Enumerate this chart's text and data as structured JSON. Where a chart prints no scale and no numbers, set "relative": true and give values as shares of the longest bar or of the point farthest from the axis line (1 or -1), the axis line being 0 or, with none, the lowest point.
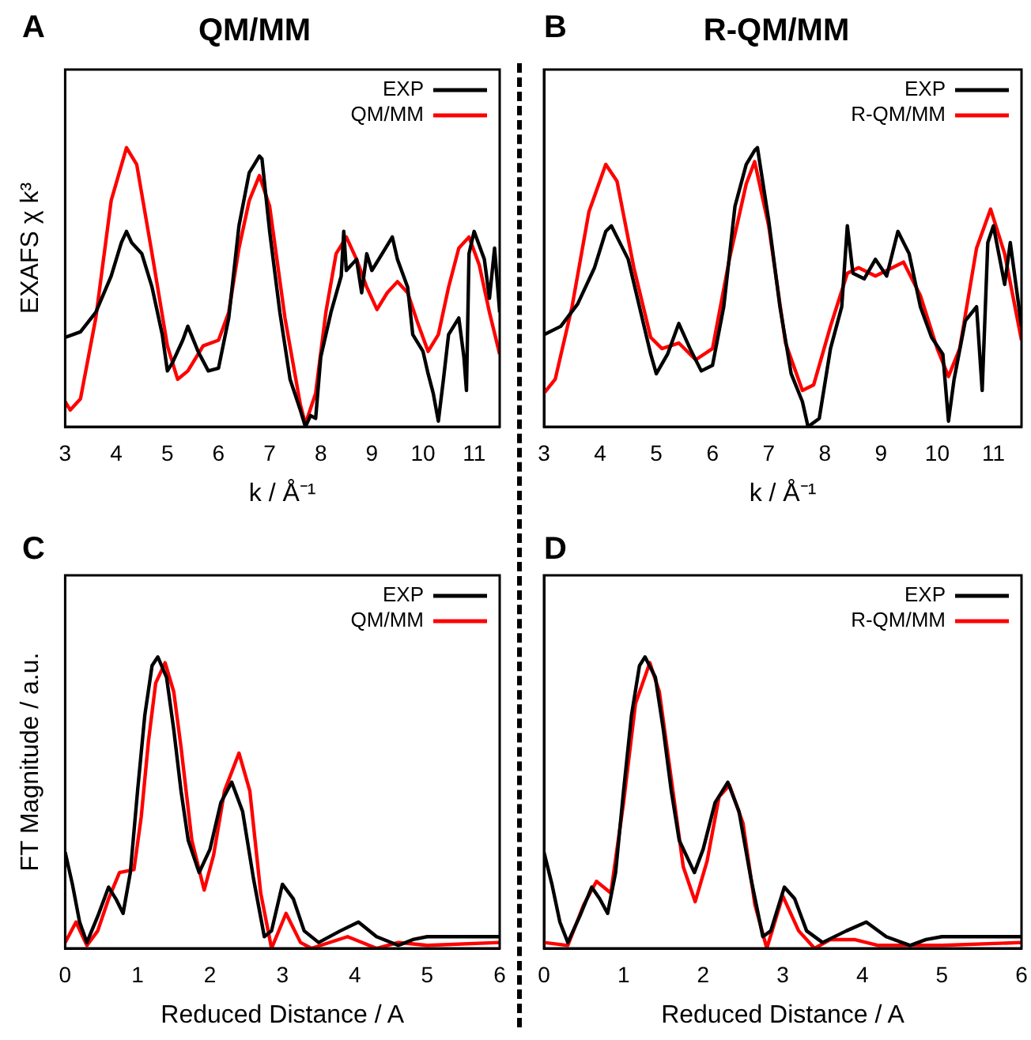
{
  "chart_data": [
    {
      "type": "line",
      "title": "QM/MM",
      "annotations": [
        "A"
      ],
      "xlabel": "k / Å⁻¹",
      "ylabel": "EXAFS χ k³",
      "relative": true,
      "legend": "top right",
      "xlim": [
        3,
        11.5
      ],
      "xticks": [
        3,
        4,
        5,
        6,
        7,
        8,
        9,
        10,
        11
      ],
      "series": [
        {
          "name": "EXP",
          "color": "#000000",
          "x": [
            3,
            3.3,
            3.6,
            3.9,
            4.1,
            4.2,
            4.3,
            4.5,
            4.7,
            4.9,
            5,
            5.1,
            5.3,
            5.4,
            5.6,
            5.8,
            6,
            6.2,
            6.4,
            6.6,
            6.7,
            6.8,
            6.85,
            7,
            7.2,
            7.4,
            7.6,
            7.7,
            7.8,
            7.9,
            8,
            8.2,
            8.4,
            8.45,
            8.5,
            8.7,
            8.8,
            8.9,
            9,
            9.2,
            9.4,
            9.5,
            9.7,
            9.8,
            10,
            10.1,
            10.2,
            10.3,
            10.4,
            10.5,
            10.7,
            10.8,
            10.85,
            10.9,
            11,
            11.2,
            11.3,
            11.4,
            11.5
          ],
          "values": [
            0.32,
            0.34,
            0.41,
            0.54,
            0.66,
            0.7,
            0.66,
            0.62,
            0.5,
            0.33,
            0.2,
            0.23,
            0.31,
            0.36,
            0.27,
            0.2,
            0.21,
            0.39,
            0.72,
            0.91,
            0.94,
            0.97,
            0.96,
            0.7,
            0.41,
            0.17,
            0.06,
            0,
            0.04,
            0.03,
            0.25,
            0.41,
            0.54,
            0.7,
            0.56,
            0.6,
            0.48,
            0.62,
            0.56,
            0.62,
            0.68,
            0.6,
            0.5,
            0.33,
            0.27,
            0.19,
            0.12,
            0.02,
            0.17,
            0.33,
            0.39,
            0.25,
            0.13,
            0.62,
            0.7,
            0.6,
            0.46,
            0.64,
            0.41
          ]
        },
        {
          "name": "QM/MM",
          "color": "#ff0000",
          "x": [
            3,
            3.1,
            3.3,
            3.6,
            3.9,
            4.2,
            4.4,
            4.7,
            5,
            5.2,
            5.4,
            5.7,
            6,
            6.2,
            6.4,
            6.6,
            6.8,
            7,
            7.3,
            7.6,
            7.7,
            7.9,
            8.1,
            8.3,
            8.5,
            8.7,
            8.9,
            9.1,
            9.3,
            9.5,
            9.7,
            9.9,
            10.1,
            10.3,
            10.5,
            10.7,
            10.9,
            11.1,
            11.3,
            11.5
          ],
          "values": [
            0.09,
            0.06,
            0.1,
            0.39,
            0.81,
            1,
            0.94,
            0.62,
            0.29,
            0.17,
            0.2,
            0.29,
            0.31,
            0.41,
            0.64,
            0.81,
            0.9,
            0.79,
            0.39,
            0.08,
            0.01,
            0.12,
            0.41,
            0.62,
            0.68,
            0.6,
            0.5,
            0.42,
            0.48,
            0.52,
            0.48,
            0.37,
            0.27,
            0.33,
            0.5,
            0.64,
            0.68,
            0.58,
            0.41,
            0.26
          ]
        }
      ]
    },
    {
      "type": "line",
      "title": "R-QM/MM",
      "annotations": [
        "B"
      ],
      "xlabel": "k / Å⁻¹",
      "relative": true,
      "legend": "top right",
      "xlim": [
        3,
        11.5
      ],
      "xticks": [
        3,
        4,
        5,
        6,
        7,
        8,
        9,
        10,
        11
      ],
      "series": [
        {
          "name": "EXP",
          "color": "#000000",
          "x": [
            3,
            3.3,
            3.6,
            3.9,
            4.1,
            4.2,
            4.3,
            4.5,
            4.7,
            4.9,
            5,
            5.2,
            5.4,
            5.6,
            5.8,
            6,
            6.2,
            6.4,
            6.6,
            6.75,
            6.8,
            7,
            7.2,
            7.4,
            7.6,
            7.7,
            7.9,
            8.1,
            8.3,
            8.4,
            8.5,
            8.7,
            8.9,
            9.1,
            9.3,
            9.5,
            9.7,
            9.9,
            10.1,
            10.2,
            10.3,
            10.5,
            10.7,
            10.8,
            10.9,
            11,
            11.2,
            11.3,
            11.5
          ],
          "values": [
            0.33,
            0.36,
            0.44,
            0.57,
            0.7,
            0.72,
            0.68,
            0.6,
            0.43,
            0.26,
            0.19,
            0.26,
            0.37,
            0.28,
            0.2,
            0.22,
            0.43,
            0.79,
            0.94,
            0.99,
            1,
            0.74,
            0.43,
            0.19,
            0.09,
            0,
            0.03,
            0.28,
            0.43,
            0.72,
            0.55,
            0.53,
            0.6,
            0.54,
            0.7,
            0.62,
            0.43,
            0.32,
            0.26,
            0.02,
            0.17,
            0.38,
            0.43,
            0.13,
            0.66,
            0.72,
            0.51,
            0.66,
            0.36
          ]
        },
        {
          "name": "R-QM/MM",
          "color": "#ff0000",
          "x": [
            3,
            3.2,
            3.5,
            3.8,
            4.1,
            4.3,
            4.6,
            4.9,
            5.1,
            5.4,
            5.7,
            6,
            6.3,
            6.6,
            6.75,
            7,
            7.3,
            7.6,
            7.8,
            8.1,
            8.4,
            8.6,
            8.9,
            9.2,
            9.4,
            9.7,
            10,
            10.2,
            10.4,
            10.7,
            10.95,
            11.2,
            11.5
          ],
          "values": [
            0.12,
            0.17,
            0.43,
            0.77,
            0.94,
            0.88,
            0.57,
            0.32,
            0.28,
            0.3,
            0.24,
            0.28,
            0.6,
            0.87,
            0.95,
            0.72,
            0.3,
            0.13,
            0.15,
            0.36,
            0.55,
            0.57,
            0.54,
            0.57,
            0.59,
            0.47,
            0.28,
            0.18,
            0.28,
            0.64,
            0.78,
            0.62,
            0.31
          ]
        }
      ]
    },
    {
      "type": "line",
      "annotations": [
        "C"
      ],
      "xlabel": "Reduced Distance / A",
      "ylabel": "FT Magnitude / a.u.",
      "relative": true,
      "legend": "top right",
      "xlim": [
        0,
        6
      ],
      "xticks": [
        0,
        1,
        2,
        3,
        4,
        5,
        6
      ],
      "series": [
        {
          "name": "EXP",
          "color": "#000000",
          "x": [
            0,
            0.1,
            0.2,
            0.3,
            0.45,
            0.6,
            0.7,
            0.8,
            0.9,
            1,
            1.1,
            1.2,
            1.28,
            1.4,
            1.5,
            1.6,
            1.7,
            1.85,
            2,
            2.15,
            2.3,
            2.45,
            2.6,
            2.75,
            2.85,
            3,
            3.15,
            3.3,
            3.5,
            3.8,
            4.05,
            4.3,
            4.6,
            4.8,
            5,
            6
          ],
          "values": [
            0.33,
            0.22,
            0.09,
            0.02,
            0.11,
            0.21,
            0.17,
            0.12,
            0.26,
            0.54,
            0.8,
            0.97,
            1,
            0.93,
            0.75,
            0.54,
            0.37,
            0.26,
            0.34,
            0.5,
            0.57,
            0.47,
            0.24,
            0.04,
            0.06,
            0.22,
            0.17,
            0.06,
            0.02,
            0.06,
            0.09,
            0.04,
            0.01,
            0.03,
            0.04,
            0.04
          ]
        },
        {
          "name": "QM/MM",
          "color": "#ff0000",
          "x": [
            0,
            0.15,
            0.3,
            0.45,
            0.6,
            0.75,
            0.95,
            1.05,
            1.15,
            1.25,
            1.38,
            1.5,
            1.6,
            1.75,
            1.92,
            2.05,
            2.2,
            2.4,
            2.55,
            2.7,
            2.85,
            3.05,
            3.25,
            3.4,
            3.9,
            4.3,
            4.6,
            5,
            6
          ],
          "values": [
            0.02,
            0.09,
            0.01,
            0.06,
            0.17,
            0.26,
            0.27,
            0.45,
            0.71,
            0.91,
            0.98,
            0.88,
            0.69,
            0.37,
            0.2,
            0.32,
            0.54,
            0.67,
            0.54,
            0.19,
            0,
            0.12,
            0.02,
            0,
            0.04,
            0,
            0.02,
            0.01,
            0.02
          ]
        }
      ]
    },
    {
      "type": "line",
      "annotations": [
        "D"
      ],
      "xlabel": "Reduced Distance / A",
      "relative": true,
      "legend": "top right",
      "xlim": [
        0,
        6
      ],
      "xticks": [
        0,
        1,
        2,
        3,
        4,
        5,
        6
      ],
      "series": [
        {
          "name": "EXP",
          "color": "#000000",
          "x": [
            0,
            0.1,
            0.2,
            0.3,
            0.45,
            0.6,
            0.7,
            0.8,
            0.9,
            1,
            1.1,
            1.2,
            1.27,
            1.4,
            1.5,
            1.6,
            1.7,
            1.89,
            2,
            2.15,
            2.31,
            2.45,
            2.6,
            2.75,
            2.85,
            3.02,
            3.15,
            3.3,
            3.5,
            3.8,
            4.05,
            4.3,
            4.6,
            4.8,
            5,
            6
          ],
          "values": [
            0.33,
            0.22,
            0.09,
            0.02,
            0.11,
            0.21,
            0.17,
            0.12,
            0.26,
            0.54,
            0.8,
            0.97,
            1,
            0.93,
            0.75,
            0.54,
            0.37,
            0.26,
            0.34,
            0.5,
            0.57,
            0.47,
            0.24,
            0.04,
            0.06,
            0.21,
            0.17,
            0.06,
            0.02,
            0.06,
            0.09,
            0.04,
            0.01,
            0.03,
            0.04,
            0.04
          ]
        },
        {
          "name": "R-QM/MM",
          "color": "#ff0000",
          "x": [
            0,
            0.3,
            0.5,
            0.66,
            0.84,
            1,
            1.15,
            1.33,
            1.45,
            1.6,
            1.75,
            1.9,
            2.05,
            2.2,
            2.33,
            2.5,
            2.65,
            2.8,
            3,
            3.2,
            3.4,
            3.6,
            3.9,
            4.2,
            5,
            6
          ],
          "values": [
            0.02,
            0.01,
            0.15,
            0.23,
            0.19,
            0.5,
            0.84,
            0.98,
            0.88,
            0.58,
            0.28,
            0.16,
            0.3,
            0.52,
            0.56,
            0.43,
            0.15,
            0,
            0.18,
            0.06,
            0,
            0.03,
            0.03,
            0.01,
            0.01,
            0.02
          ]
        }
      ]
    }
  ]
}
